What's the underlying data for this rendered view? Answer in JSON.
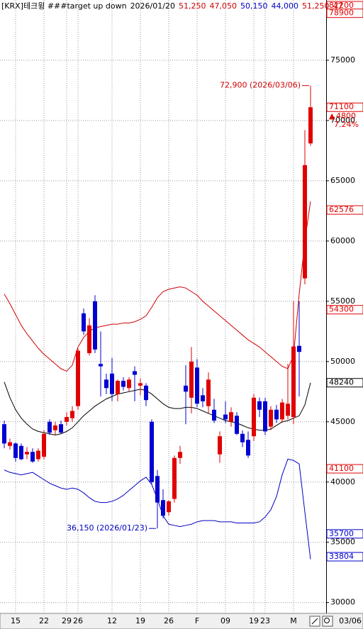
{
  "chart_data": {
    "type": "candlestick",
    "header": [
      {
        "text": "[KRX]테크윙 ###target up down",
        "color": "#000000"
      },
      {
        "text": "2026/01/20",
        "color": "#000000"
      },
      {
        "text": "51,250",
        "color": "#d00000"
      },
      {
        "text": "47,050",
        "color": "#d00000"
      },
      {
        "text": "50,150",
        "color": "#0000c0"
      },
      {
        "text": "44,000",
        "color": "#0000c0"
      },
      {
        "text": "51,250",
        "color": "#d00000"
      },
      {
        "text": "47",
        "color": "#d00000"
      }
    ],
    "categories": [
      null,
      null,
      "15",
      null,
      null,
      null,
      null,
      "22",
      null,
      null,
      null,
      "29",
      null,
      "26",
      null,
      null,
      null,
      null,
      null,
      "12",
      null,
      null,
      null,
      null,
      "19",
      null,
      null,
      null,
      null,
      "26",
      null,
      null,
      null,
      null,
      "F",
      null,
      null,
      null,
      null,
      "09",
      null,
      null,
      null,
      null,
      "19",
      null,
      "23",
      null,
      null,
      null,
      null,
      "M",
      null,
      null,
      null
    ],
    "last_date": "03/06",
    "open": [
      44800,
      43000,
      43200,
      43000,
      42300,
      42500,
      41900,
      42100,
      45000,
      44300,
      44800,
      45000,
      45300,
      46300,
      54000,
      50700,
      55000,
      49800,
      48500,
      49000,
      47300,
      48400,
      47800,
      49200,
      48000,
      48000,
      45000,
      40500,
      38500,
      37500,
      38600,
      42000,
      48000,
      47000,
      49500,
      47200,
      46300,
      46000,
      42300,
      45600,
      45000,
      45500,
      44000,
      43500,
      43800,
      46700,
      46700,
      44600,
      46000,
      45200,
      45500,
      45400,
      51300,
      56900,
      68100
    ],
    "high": [
      45100,
      43600,
      43300,
      43200,
      42900,
      42800,
      42800,
      44300,
      45200,
      45000,
      45100,
      45800,
      46300,
      51100,
      54400,
      53600,
      55500,
      52500,
      49000,
      50300,
      48500,
      48700,
      48700,
      49600,
      48600,
      48200,
      45200,
      41000,
      39400,
      38500,
      42200,
      43000,
      49700,
      51200,
      50200,
      47800,
      49100,
      46900,
      44200,
      46700,
      46200,
      45800,
      44300,
      44200,
      47300,
      47000,
      47000,
      46300,
      46400,
      46900,
      49800,
      55000,
      55000,
      69200,
      72900
    ],
    "low": [
      42800,
      42700,
      41700,
      41800,
      41900,
      41600,
      41700,
      41900,
      43900,
      43900,
      44000,
      44700,
      45000,
      46000,
      52200,
      50500,
      50700,
      47100,
      47300,
      46700,
      46700,
      47600,
      47500,
      46700,
      47200,
      46300,
      39800,
      36150,
      37000,
      37200,
      38300,
      41500,
      44800,
      45700,
      46200,
      46200,
      45700,
      44900,
      41600,
      44900,
      44600,
      43900,
      42900,
      42000,
      43400,
      45400,
      43900,
      44300,
      44900,
      44900,
      45200,
      44800,
      47100,
      56400,
      67900
    ],
    "close": [
      43200,
      43300,
      42000,
      41900,
      42500,
      41700,
      42600,
      44000,
      44100,
      44700,
      44100,
      45400,
      45900,
      50900,
      52500,
      53000,
      51000,
      49600,
      47800,
      47300,
      48400,
      47900,
      48500,
      48900,
      48200,
      46800,
      40000,
      38300,
      37200,
      38400,
      42000,
      42500,
      47500,
      50000,
      46500,
      46700,
      48500,
      45100,
      43800,
      45200,
      45800,
      44000,
      43300,
      42200,
      47000,
      46000,
      44200,
      46000,
      45200,
      46600,
      46500,
      51250,
      50800,
      66300,
      71100
    ],
    "up_color": "#e00000",
    "down_color": "#0000d0",
    "bands": [
      {
        "color": "#d00000",
        "values": [
          55600,
          54800,
          53900,
          53000,
          52300,
          51700,
          51100,
          50600,
          50200,
          49800,
          49400,
          49200,
          49700,
          51200,
          52000,
          52500,
          52800,
          52900,
          53000,
          53100,
          53100,
          53200,
          53200,
          53300,
          53500,
          53800,
          54500,
          55300,
          55800,
          56000,
          56100,
          56200,
          56100,
          55800,
          55500,
          55000,
          54600,
          54200,
          53800,
          53400,
          53000,
          52600,
          52200,
          51800,
          51500,
          51200,
          50800,
          50400,
          50000,
          49600,
          49400,
          50500,
          55600,
          60000,
          63300
        ]
      },
      {
        "color": "#000000",
        "values": [
          48300,
          47000,
          46000,
          45300,
          44800,
          44400,
          44200,
          44100,
          44000,
          43900,
          44000,
          44200,
          44500,
          45000,
          45500,
          45900,
          46300,
          46600,
          46900,
          47100,
          47300,
          47400,
          47500,
          47600,
          47700,
          47600,
          47300,
          46900,
          46500,
          46200,
          46100,
          46100,
          46200,
          46200,
          46100,
          45900,
          45700,
          45500,
          45300,
          45100,
          45000,
          44900,
          44700,
          44500,
          44400,
          44300,
          44300,
          44400,
          44700,
          45000,
          45100,
          45300,
          45500,
          46400,
          48240
        ]
      },
      {
        "color": "#0000c0",
        "values": [
          41000,
          40800,
          40700,
          40600,
          40700,
          40800,
          40500,
          40200,
          39900,
          39700,
          39500,
          39400,
          39500,
          39400,
          39100,
          38700,
          38400,
          38300,
          38300,
          38400,
          38600,
          38900,
          39300,
          39700,
          40100,
          40400,
          39800,
          38600,
          37200,
          36500,
          36400,
          36300,
          36400,
          36500,
          36700,
          36800,
          36800,
          36800,
          36700,
          36700,
          36700,
          36600,
          36600,
          36600,
          36600,
          36700,
          37100,
          37700,
          38800,
          40600,
          41900,
          41800,
          41500,
          37500,
          33600
        ]
      }
    ],
    "ylim": [
      29100,
      80000
    ],
    "yticks": [
      30000,
      35000,
      40000,
      45000,
      50000,
      55000,
      60000,
      65000,
      70000,
      75000
    ],
    "grid": true,
    "price_labels": [
      {
        "value": 82200,
        "color": "#e00000",
        "boxed": true
      },
      {
        "value": 78900,
        "color": "#e00000",
        "boxed": true
      },
      {
        "value": 71100,
        "color": "#e00000",
        "boxed": true
      },
      {
        "value": 62576,
        "color": "#e00000",
        "boxed": true
      },
      {
        "value": 54300,
        "color": "#e00000",
        "boxed": true
      },
      {
        "value": 48240,
        "color": "#000000",
        "boxed": true
      },
      {
        "value": 41100,
        "color": "#e00000",
        "boxed": true
      },
      {
        "value": 35700,
        "color": "#0000d0",
        "boxed": true
      },
      {
        "value": 33804,
        "color": "#0000d0",
        "boxed": true
      }
    ],
    "change": 4800,
    "change_pct": {
      "value": 7.24,
      "label": "7.24%"
    },
    "annotations": [
      {
        "text": "72,900 (2026/03/06)",
        "index": 54,
        "price": 72900,
        "color": "#d00000"
      },
      {
        "text": "36,150 (2026/01/23)",
        "index": 27,
        "price": 36150,
        "color": "#0000c0"
      }
    ]
  }
}
